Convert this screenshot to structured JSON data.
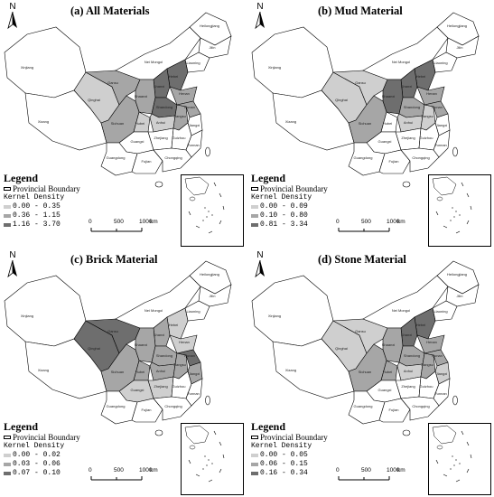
{
  "map": {
    "inset_label": "",
    "scale": {
      "ticks": [
        "0",
        "500",
        "1000"
      ],
      "unit": "km"
    },
    "north_label": "N",
    "province_labels": [
      "Xinjiang",
      "Xizang",
      "Qinghai",
      "Gansu",
      "Nei Mongol",
      "Heilongjiang",
      "Jilin",
      "Liaoning",
      "Hebei",
      "Shanxi",
      "Shaanxi",
      "Henan",
      "Shandong",
      "Sichuan",
      "Hubei",
      "Anhui",
      "Jiangsu",
      "Hunan",
      "Jiangxi",
      "Zhejiang",
      "Guizhou",
      "Yunnan",
      "Guangxi",
      "Guangdong",
      "Fujian",
      "Chongqing"
    ]
  },
  "panels": [
    {
      "title": "(a) All Materials",
      "legend": {
        "title": "Legend",
        "boundary": "Provincial Boundary",
        "density_title": "Kernel Density",
        "classes": [
          "0.00 - 0.35",
          "0.36 - 1.15",
          "1.16 - 3.70"
        ]
      }
    },
    {
      "title": "(b) Mud Material",
      "legend": {
        "title": "Legend",
        "boundary": "Provincial Boundary",
        "density_title": "Kernel Density",
        "classes": [
          "0.00 - 0.09",
          "0.10 - 0.80",
          "0.81 - 3.34"
        ]
      }
    },
    {
      "title": "(c) Brick Material",
      "legend": {
        "title": "Legend",
        "boundary": "Provincial Boundary",
        "density_title": "Kernel Density",
        "classes": [
          "0.00 - 0.02",
          "0.03 - 0.06",
          "0.07 - 0.10"
        ]
      }
    },
    {
      "title": "(d) Stone Material",
      "legend": {
        "title": "Legend",
        "boundary": "Provincial Boundary",
        "density_title": "Kernel Density",
        "classes": [
          "0.00 - 0.05",
          "0.06 - 0.15",
          "0.16 - 0.34"
        ]
      }
    }
  ],
  "colors": {
    "class0": "#cfcfcf",
    "class1": "#a6a6a6",
    "class2": "#6e6e6e",
    "background": "#ffffff"
  }
}
